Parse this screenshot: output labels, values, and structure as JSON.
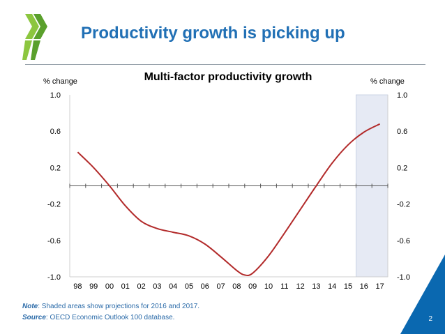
{
  "slide": {
    "title": "Productivity growth is picking up",
    "note_label": "Note",
    "note_text": ": Shaded areas show projections for 2016 and 2017.",
    "source_label": "Source",
    "source_text": ": OECD Economic Outlook 100 database.",
    "page_number": "2",
    "colors": {
      "title": "#2170b5",
      "logo": "#8cc63f",
      "corner": "#0a68b0"
    }
  },
  "chart_data": {
    "type": "line",
    "title": "Multi-factor productivity growth",
    "ylabel_left": "% change",
    "ylabel_right": "% change",
    "categories": [
      "98",
      "99",
      "00",
      "01",
      "02",
      "03",
      "04",
      "05",
      "06",
      "07",
      "08",
      "09",
      "10",
      "11",
      "12",
      "13",
      "14",
      "15",
      "16",
      "17"
    ],
    "y_ticks": [
      "1.0",
      "0.6",
      "0.2",
      "-0.2",
      "-0.6",
      "-1.0"
    ],
    "ylim": [
      -1.0,
      1.0
    ],
    "projection_shaded": [
      "16",
      "17"
    ],
    "series": [
      {
        "color": "#b22a2a",
        "x": [
          1998,
          1999,
          2000,
          2001,
          2002,
          2003,
          2004,
          2005,
          2006,
          2007,
          2008,
          2008.5,
          2009,
          2010,
          2011,
          2012,
          2013,
          2014,
          2015,
          2016,
          2017
        ],
        "values": [
          0.37,
          0.2,
          0.0,
          -0.22,
          -0.39,
          -0.47,
          -0.51,
          -0.55,
          -0.64,
          -0.78,
          -0.93,
          -0.98,
          -0.96,
          -0.77,
          -0.52,
          -0.26,
          0.0,
          0.25,
          0.45,
          0.59,
          0.68
        ]
      }
    ]
  }
}
